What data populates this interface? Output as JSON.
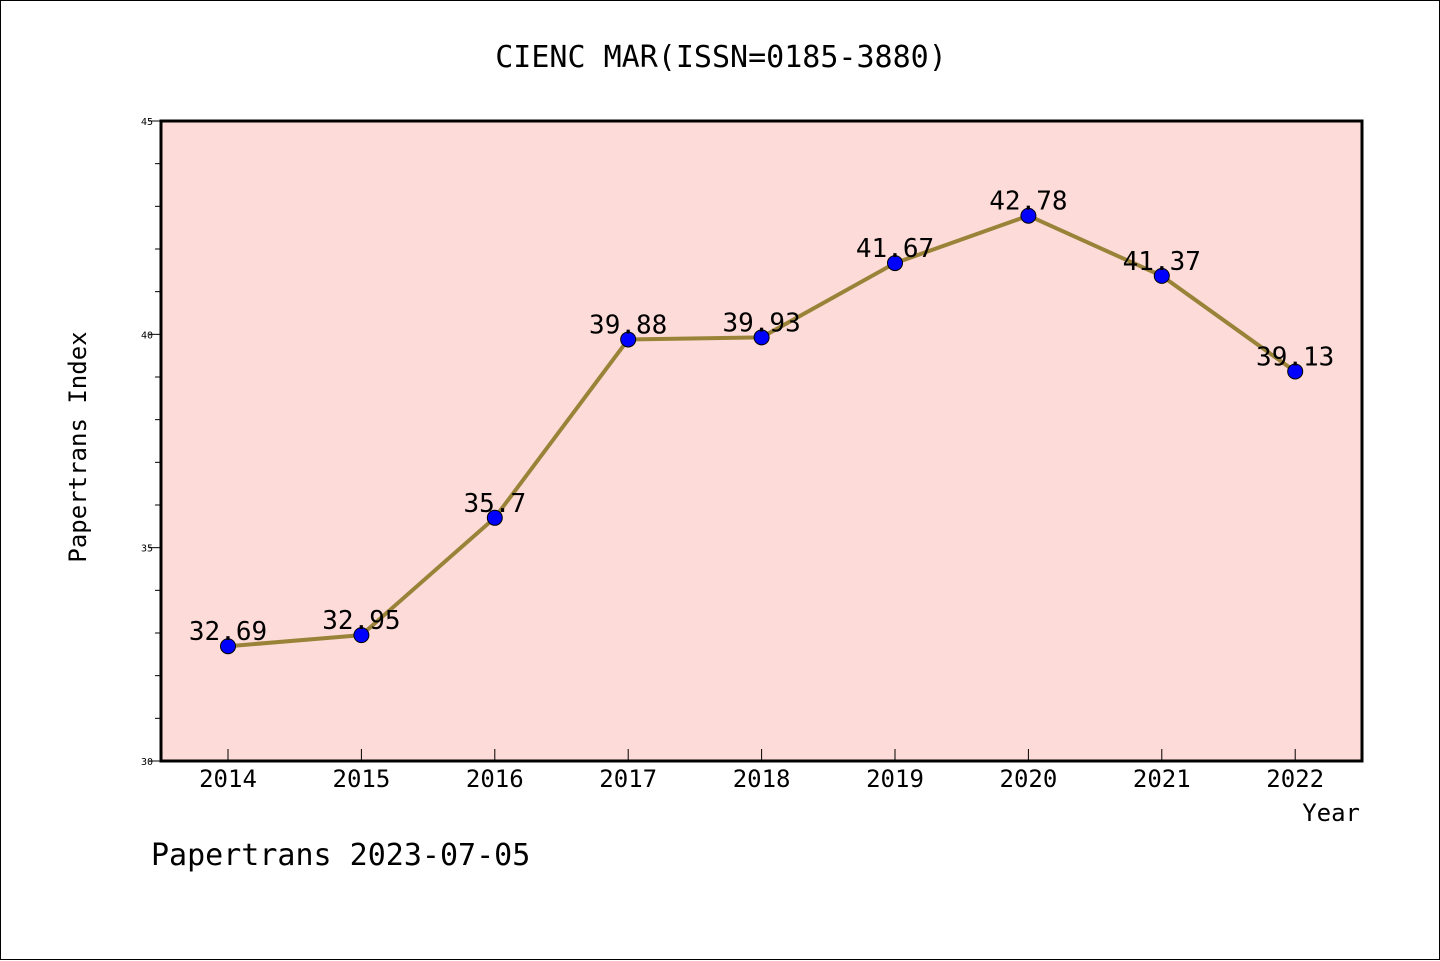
{
  "chart_data": {
    "type": "line",
    "title": "CIENC MAR(ISSN=0185-3880)",
    "xlabel": "Year",
    "ylabel": "Papertrans Index",
    "categories": [
      "2014",
      "2015",
      "2016",
      "2017",
      "2018",
      "2019",
      "2020",
      "2021",
      "2022"
    ],
    "values": [
      32.69,
      32.95,
      35.7,
      39.88,
      39.93,
      41.67,
      42.78,
      41.37,
      39.13
    ],
    "data_labels": [
      "32.69",
      "32.95",
      "35.7",
      "39.88",
      "39.93",
      "41.67",
      "42.78",
      "41.37",
      "39.13"
    ],
    "ylim": [
      30,
      45
    ],
    "yticks": [
      "30",
      "35",
      "40",
      "45"
    ],
    "grid": false,
    "colors": {
      "plot_background": "#fddbd8",
      "line": "#9a8338",
      "marker": "#0000ff"
    }
  },
  "footer": "Papertrans 2023-07-05"
}
